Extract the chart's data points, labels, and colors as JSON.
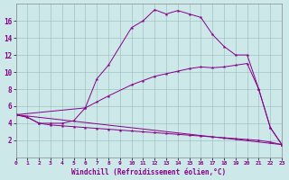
{
  "xlabel": "Windchill (Refroidissement éolien,°C)",
  "bg_color": "#cce8e8",
  "line_color": "#880088",
  "grid_color": "#99bbbb",
  "xlim": [
    0,
    23
  ],
  "ylim": [
    0,
    18
  ],
  "xticks": [
    0,
    1,
    2,
    3,
    4,
    5,
    6,
    7,
    8,
    9,
    10,
    11,
    12,
    13,
    14,
    15,
    16,
    17,
    18,
    19,
    20,
    21,
    22,
    23
  ],
  "yticks": [
    2,
    4,
    6,
    8,
    10,
    12,
    14,
    16
  ],
  "series": [
    {
      "x": [
        0,
        1,
        2,
        3,
        4,
        5,
        6,
        7,
        8,
        10,
        11,
        12,
        13,
        14,
        15,
        16,
        17,
        18,
        19,
        20,
        21,
        22,
        23
      ],
      "y": [
        5.0,
        4.7,
        4.0,
        4.0,
        4.0,
        4.3,
        5.8,
        9.2,
        10.8,
        15.2,
        16.0,
        17.3,
        16.8,
        17.2,
        16.8,
        16.4,
        14.4,
        13.0,
        12.0,
        12.0,
        8.0,
        3.5,
        1.5
      ]
    },
    {
      "x": [
        0,
        1,
        2,
        3,
        4,
        5,
        6,
        7,
        8,
        9,
        10,
        11,
        12,
        13,
        14,
        15,
        16,
        17,
        18,
        19,
        20,
        21,
        22,
        23
      ],
      "y": [
        5.0,
        4.7,
        4.0,
        3.8,
        3.7,
        3.6,
        3.5,
        3.4,
        3.3,
        3.2,
        3.1,
        3.0,
        2.9,
        2.8,
        2.7,
        2.6,
        2.5,
        2.4,
        2.3,
        2.2,
        2.1,
        2.0,
        1.8,
        1.5
      ]
    },
    {
      "x": [
        0,
        23
      ],
      "y": [
        5.0,
        1.5
      ]
    },
    {
      "x": [
        0,
        6,
        7,
        8,
        10,
        11,
        12,
        13,
        14,
        15,
        16,
        17,
        18,
        19,
        20,
        21,
        22,
        23
      ],
      "y": [
        5.0,
        5.8,
        6.5,
        7.2,
        8.5,
        9.0,
        9.5,
        9.8,
        10.1,
        10.4,
        10.6,
        10.5,
        10.6,
        10.8,
        11.0,
        8.0,
        3.5,
        1.5
      ]
    }
  ]
}
